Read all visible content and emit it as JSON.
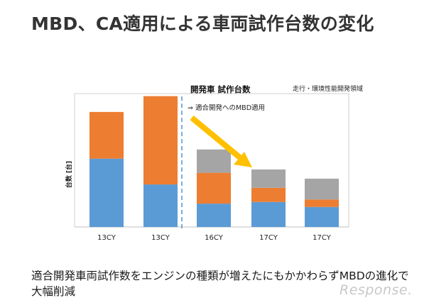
{
  "title": "MBD、CA適用による車両試作台数の変化",
  "caption": {
    "line1": "適合開発車両試作数をエンジンの種類が増えたにもかかわらずMBDの進化で",
    "line2": "大幅削減"
  },
  "watermark": "Response.",
  "colors": {
    "blue": "#5b9bd5",
    "orange": "#ed7d31",
    "gray": "#a5a5a5",
    "arrow": "#ffc000",
    "divider": "#5b9bd5"
  },
  "chart_data": {
    "type": "bar",
    "stacked": true,
    "title": "開発車 試作台数",
    "subtitle": "走行・環境性能開発領域",
    "annotation": "⇒ 適合開発へのMBD適用",
    "ylabel": "台数 [台]",
    "xlabel": "",
    "categories": [
      "13CY",
      "13CY",
      "16CY",
      "17CY",
      "17CY"
    ],
    "series": [
      {
        "color": "#5b9bd5",
        "values": [
          82,
          51,
          28,
          30,
          24
        ]
      },
      {
        "color": "#ed7d31",
        "values": [
          56,
          106,
          37,
          17,
          9
        ]
      },
      {
        "color": "#a5a5a5",
        "values": [
          0,
          0,
          28,
          22,
          25
        ]
      }
    ],
    "ylim": [
      0,
      160
    ],
    "grid": false,
    "legend": "none"
  }
}
